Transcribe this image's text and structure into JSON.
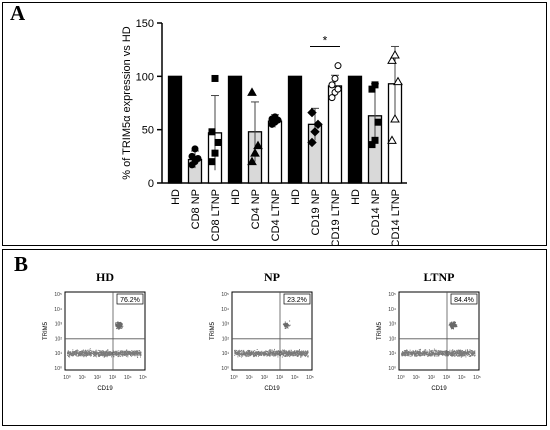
{
  "panels": {
    "a_label": "A",
    "b_label": "B"
  },
  "chart_data": [
    {
      "type": "bar",
      "ylabel": "% of TRIM5α expression vs HD",
      "ylim": [
        0,
        150
      ],
      "yticks": [
        0,
        50,
        100,
        150
      ],
      "categories": [
        "HD",
        "CD8 NP",
        "CD8 LTNP",
        "HD",
        "CD4 NP",
        "CD4 LTNP",
        "HD",
        "CD19 NP",
        "CD19 LTNP",
        "HD",
        "CD14 NP",
        "CD14 LTNP"
      ],
      "values": [
        100,
        22,
        47,
        100,
        48,
        58,
        100,
        55,
        91,
        100,
        63,
        93
      ],
      "errors": [
        0,
        8,
        35,
        0,
        28,
        6,
        0,
        15,
        10,
        0,
        30,
        35
      ],
      "bar_fill": [
        "#000000",
        "#d9d9d9",
        "#ffffff",
        "#000000",
        "#d9d9d9",
        "#ffffff",
        "#000000",
        "#d9d9d9",
        "#ffffff",
        "#000000",
        "#d9d9d9",
        "#ffffff"
      ],
      "points": [
        [],
        [
          17,
          20,
          23,
          25,
          32
        ],
        [
          20,
          28,
          38,
          48,
          98
        ],
        [],
        [
          20,
          28,
          35,
          85
        ],
        [
          55,
          57,
          59,
          60,
          62
        ],
        [],
        [
          38,
          48,
          55,
          66
        ],
        [
          80,
          85,
          88,
          92,
          98,
          110
        ],
        [],
        [
          36,
          40,
          57,
          88,
          92
        ],
        [
          40,
          60,
          95,
          115,
          120
        ]
      ],
      "markers": [
        "none",
        "circle",
        "square",
        "none",
        "triangle",
        "circle",
        "none",
        "diamond",
        "circle",
        "none",
        "square",
        "triangle"
      ],
      "significance": {
        "label": "*",
        "from_index": 7,
        "to_index": 8,
        "y": 128
      }
    },
    {
      "type": "scatter",
      "title": "HD",
      "xlabel": "CD19",
      "ylabel": "TRIM5",
      "quadrant_label": "76.2%",
      "tick_labels": [
        "10⁰",
        "10¹",
        "10²",
        "10³",
        "10⁴",
        "10⁵"
      ]
    },
    {
      "type": "scatter",
      "title": "NP",
      "xlabel": "CD19",
      "ylabel": "TRIM5",
      "quadrant_label": "23.2%",
      "tick_labels": [
        "10⁰",
        "10¹",
        "10²",
        "10³",
        "10⁴",
        "10⁵"
      ]
    },
    {
      "type": "scatter",
      "title": "LTNP",
      "xlabel": "CD19",
      "ylabel": "TRIM5",
      "quadrant_label": "84.4%",
      "tick_labels": [
        "10⁰",
        "10¹",
        "10²",
        "10³",
        "10⁴",
        "10⁵"
      ]
    }
  ]
}
